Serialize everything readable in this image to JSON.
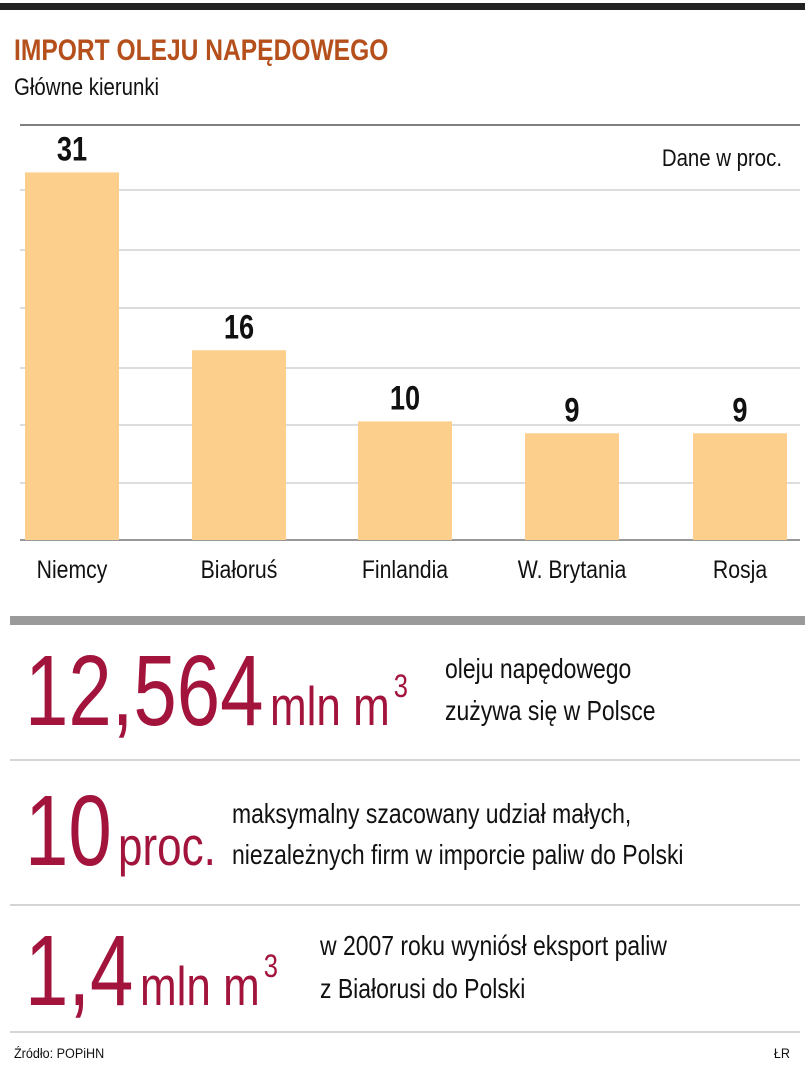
{
  "chart_data": {
    "type": "bar",
    "title": "IMPORT OLEJU NAPĘDOWEGO",
    "subtitle": "Główne kierunki",
    "note": "Dane w proc.",
    "categories": [
      "Niemcy",
      "Białoruś",
      "Finlandia",
      "W. Brytania",
      "Rosja"
    ],
    "values": [
      31,
      16,
      10,
      9,
      9
    ],
    "color": "#fccf8c",
    "ylim": [
      0,
      35
    ]
  },
  "stats": [
    {
      "number": "12,564",
      "unit": "mln m",
      "unit_sup": "3",
      "lines": [
        "oleju napędowego",
        "zużywa się w Polsce"
      ]
    },
    {
      "number": "10",
      "unit": "proc.",
      "lines": [
        "maksymalny szacowany udział małych,",
        "niezależnych firm w imporcie paliw do Polski"
      ]
    },
    {
      "number": "1,4",
      "unit": "mln m",
      "unit_sup": "3",
      "lines": [
        "w 2007 roku wyniósł eksport paliw",
        "z Białorusi do Polski"
      ]
    }
  ],
  "source": "Źródło: POPiHN",
  "credit": "ŁR"
}
